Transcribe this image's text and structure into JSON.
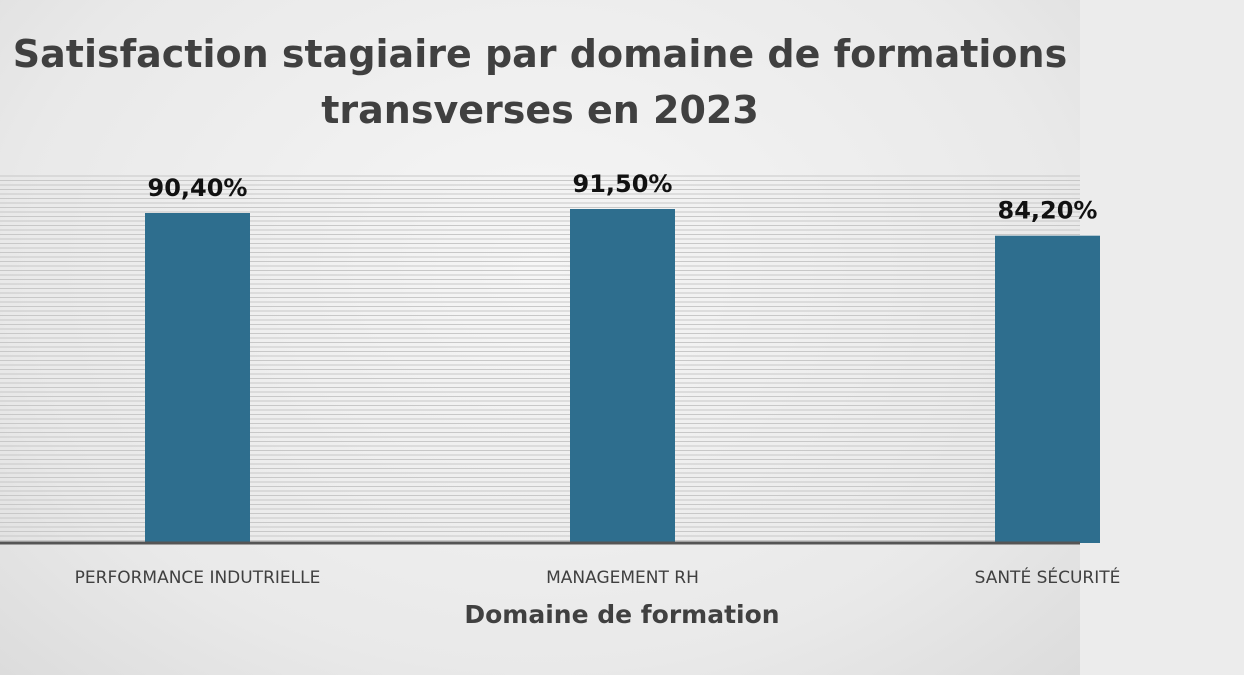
{
  "chart_data": {
    "type": "bar",
    "title_lines": [
      "Satisfaction stagiaire par domaine de formations",
      "transverses en 2023"
    ],
    "xlabel": "Domaine de formation",
    "ylabel": "",
    "categories": [
      "PERFORMANCE INDUTRIELLE",
      "MANAGEMENT RH",
      "SANTÉ SÉCURITÉ"
    ],
    "values": [
      90.4,
      91.5,
      84.2
    ],
    "data_labels": [
      "90,40%",
      "91,50%",
      "84,20%"
    ],
    "ylim": [
      0,
      100
    ],
    "grid": true,
    "legend": "none",
    "bar_color": "#2e6e8e",
    "grid_color": "#c8c8c8",
    "axis_color": "#555555"
  }
}
